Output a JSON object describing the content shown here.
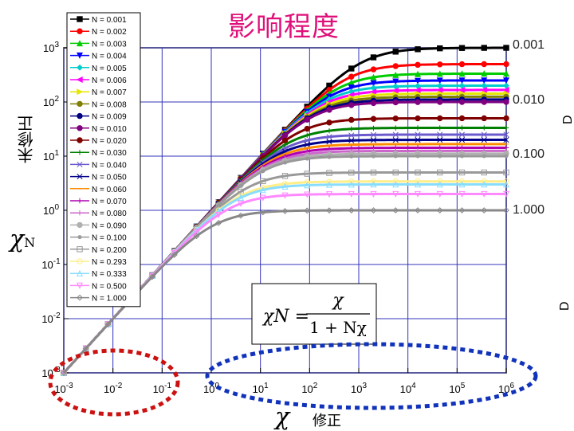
{
  "title": "影响程度",
  "ylabel_symbol": "χN",
  "ylabel_text": "未修正",
  "xlabel_symbol": "χ",
  "xlabel_text": "修正",
  "right_labels": [
    "0.001",
    "0.010",
    "0.100",
    "1.000"
  ],
  "edge_labels": [
    "D",
    "D"
  ],
  "formula": {
    "lhs": "χN =",
    "numerator": "χ",
    "denominator": "1 + Nχ"
  },
  "chart_data": {
    "type": "line",
    "title": "影响程度",
    "x_scale": "log",
    "y_scale": "log",
    "xlim": [
      0.001,
      1000000
    ],
    "ylim": [
      0.001,
      1000
    ],
    "x_ticks": [
      "10^-3",
      "10^-2",
      "10^-1",
      "10^0",
      "10^1",
      "10^2",
      "10^3",
      "10^4",
      "10^5",
      "10^6"
    ],
    "y_ticks": [
      "10^-3",
      "10^-2",
      "10^-1",
      "10^0",
      "10^1",
      "10^2",
      "10^3"
    ],
    "grid": true,
    "legend_position": "top-left",
    "model": "chi_N = chi / (1 + N * chi)",
    "series": [
      {
        "name": "N = 0.001",
        "N": 0.001,
        "color": "#000000",
        "marker": "square"
      },
      {
        "name": "N = 0.002",
        "N": 0.002,
        "color": "#ff0000",
        "marker": "circle"
      },
      {
        "name": "N = 0.003",
        "N": 0.003,
        "color": "#00cc00",
        "marker": "triangle-up"
      },
      {
        "name": "N = 0.004",
        "N": 0.004,
        "color": "#0000ff",
        "marker": "triangle-down"
      },
      {
        "name": "N = 0.005",
        "N": 0.005,
        "color": "#00cccc",
        "marker": "diamond"
      },
      {
        "name": "N = 0.006",
        "N": 0.006,
        "color": "#ff00ff",
        "marker": "triangle-left"
      },
      {
        "name": "N = 0.007",
        "N": 0.007,
        "color": "#e6e600",
        "marker": "triangle-right"
      },
      {
        "name": "N = 0.008",
        "N": 0.008,
        "color": "#808000",
        "marker": "hexagon"
      },
      {
        "name": "N = 0.009",
        "N": 0.009,
        "color": "#000080",
        "marker": "star"
      },
      {
        "name": "N = 0.010",
        "N": 0.01,
        "color": "#800080",
        "marker": "pentagon"
      },
      {
        "name": "N = 0.020",
        "N": 0.02,
        "color": "#800000",
        "marker": "circle-bar"
      },
      {
        "name": "N = 0.030",
        "N": 0.03,
        "color": "#008000",
        "marker": "plus"
      },
      {
        "name": "N = 0.040",
        "N": 0.04,
        "color": "#6a5acd",
        "marker": "x"
      },
      {
        "name": "N = 0.050",
        "N": 0.05,
        "color": "#00008b",
        "marker": "asterisk"
      },
      {
        "name": "N = 0.060",
        "N": 0.06,
        "color": "#ff8c00",
        "marker": "dash"
      },
      {
        "name": "N = 0.070",
        "N": 0.07,
        "color": "#b000b0",
        "marker": "dash-bar"
      },
      {
        "name": "N = 0.080",
        "N": 0.08,
        "color": "#cc66cc",
        "marker": "bar"
      },
      {
        "name": "N = 0.090",
        "N": 0.09,
        "color": "#b0b0b0",
        "marker": "dot"
      },
      {
        "name": "N = 0.100",
        "N": 0.1,
        "color": "#999999",
        "marker": "circle-small"
      },
      {
        "name": "N = 0.200",
        "N": 0.2,
        "color": "#999999",
        "marker": "square-open"
      },
      {
        "name": "N = 0.293",
        "N": 0.293,
        "color": "#ffee88",
        "marker": "circle-open"
      },
      {
        "name": "N = 0.333",
        "N": 0.333,
        "color": "#88ddff",
        "marker": "triangle-open"
      },
      {
        "name": "N = 0.500",
        "N": 0.5,
        "color": "#ff88ff",
        "marker": "triangle-down-open"
      },
      {
        "name": "N = 1.000",
        "N": 1.0,
        "color": "#888888",
        "marker": "diamond-open"
      }
    ]
  },
  "annotations": {
    "red_ellipse": "highlight-small-chi",
    "blue_ellipse": "highlight-large-chi"
  }
}
